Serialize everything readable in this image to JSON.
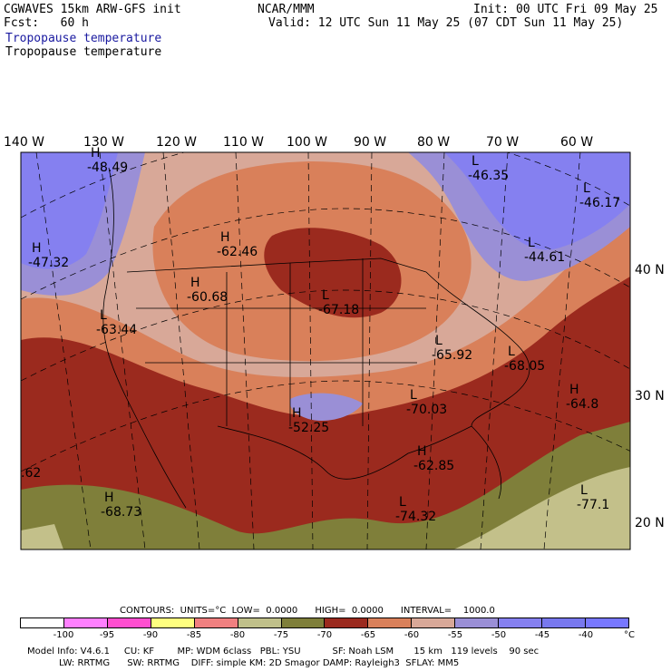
{
  "header": {
    "model": "CGWAVES 15km ARW-GFS init",
    "center": "NCAR/MMM",
    "init": "Init: 00 UTC Fri 09 May 25",
    "fcst": "Fcst:   60 h",
    "valid": "Valid: 12 UTC Sun 11 May 25 (07 CDT Sun 11 May 25)",
    "field_title": "Tropopause temperature",
    "field_subtitle": "Tropopause temperature"
  },
  "map": {
    "lon_labels": [
      "140 W",
      "130 W",
      "120 W",
      "110 W",
      "100 W",
      "90 W",
      "80 W",
      "70 W",
      "60 W"
    ],
    "lat_labels": [
      "40 N",
      "30 N",
      "20 N"
    ],
    "extrema": [
      {
        "type": "H",
        "value": "-48.49"
      },
      {
        "type": "L",
        "value": "-46.35"
      },
      {
        "type": "L",
        "value": "-46.17"
      },
      {
        "type": "H",
        "value": "-47.32"
      },
      {
        "type": "H",
        "value": "-62.46"
      },
      {
        "type": "L",
        "value": "-44.61"
      },
      {
        "type": "H",
        "value": "-60.68"
      },
      {
        "type": "L",
        "value": "-67.18"
      },
      {
        "type": "L",
        "value": "-63.44"
      },
      {
        "type": "L",
        "value": "-65.92"
      },
      {
        "type": "L",
        "value": "-68.05"
      },
      {
        "type": "H",
        "value": "-64.8"
      },
      {
        "type": "H",
        "value": "-52.25"
      },
      {
        "type": "L",
        "value": "-70.03"
      },
      {
        "type": "H",
        "value": "-62.85"
      },
      {
        "type": "H",
        "value": "-68.73"
      },
      {
        "type": "L",
        "value": "-74.32"
      },
      {
        "type": "L",
        "value": "-77.1"
      },
      {
        "type": "",
        "value": ".62"
      }
    ],
    "colors": {
      "deep_red": "#9b2a1e",
      "orange": "#d9805a",
      "pale_pink": "#d8a898",
      "lavender": "#9a8fd6",
      "blue_violet": "#8580f0",
      "olive": "#7f7f3a",
      "tan": "#c3c08a"
    }
  },
  "contour_info": {
    "contours": "CONTOURS:  UNITS=°C  LOW=  0.0000      HIGH=  0.0000      INTERVAL=    1000.0"
  },
  "legend": {
    "colors": [
      "#ffffff",
      "#ff80ff",
      "#ff4fd0",
      "#ffff80",
      "#f08080",
      "#c0c08a",
      "#7f7f3a",
      "#9b2a1e",
      "#d9805a",
      "#d8a898",
      "#9a8fd6",
      "#8580f0",
      "#7878ee",
      "#7878ff"
    ],
    "ticks": [
      "-100",
      "-95",
      "-90",
      "-85",
      "-80",
      "-75",
      "-70",
      "-65",
      "-60",
      "-55",
      "-50",
      "-45",
      "-40",
      "°C"
    ]
  },
  "footer": {
    "line1": "Model Info: V4.6.1     CU: KF        MP: WDM 6class   PBL: YSU           SF: Noah LSM       15 km   119 levels    90 sec",
    "line2": "           LW: RRTMG      SW: RRTMG    DIFF: simple KM: 2D Smagor DAMP: Rayleigh3  SFLAY: MM5"
  }
}
